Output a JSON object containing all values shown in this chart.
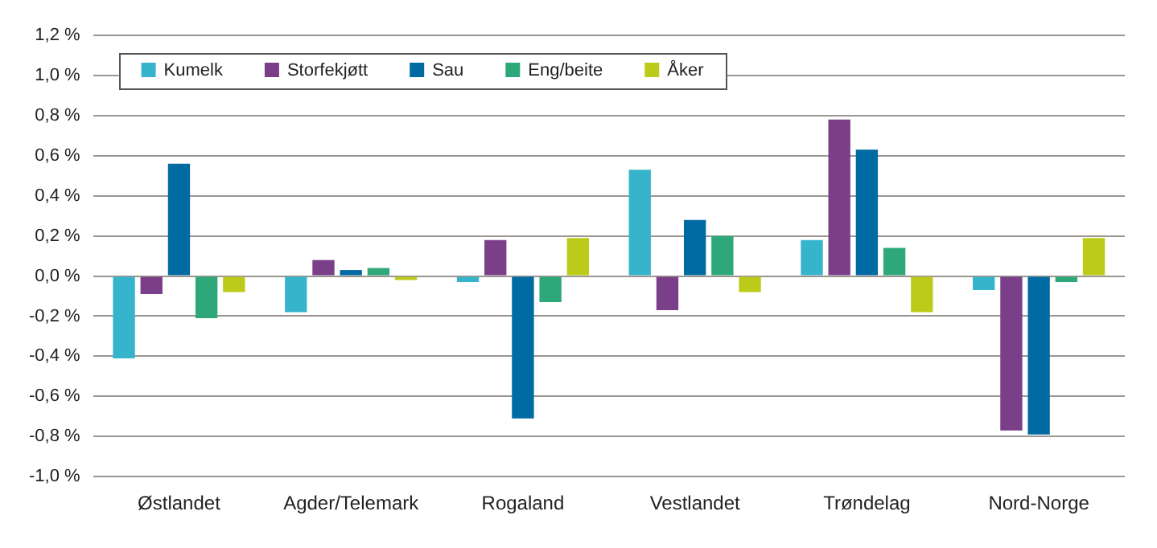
{
  "chart_data": {
    "type": "bar",
    "categories": [
      "Østlandet",
      "Agder/Telemark",
      "Rogaland",
      "Vestlandet",
      "Trøndelag",
      "Nord-Norge"
    ],
    "series": [
      {
        "name": "Kumelk",
        "color": "#36b4cc",
        "values": [
          -0.41,
          -0.18,
          -0.03,
          0.53,
          0.18,
          -0.07
        ]
      },
      {
        "name": "Storfekjøtt",
        "color": "#7b3f8a",
        "values": [
          -0.09,
          0.08,
          0.18,
          -0.17,
          0.78,
          -0.77
        ]
      },
      {
        "name": "Sau",
        "color": "#006aa3",
        "values": [
          0.56,
          0.03,
          -0.71,
          0.28,
          0.63,
          -0.79
        ]
      },
      {
        "name": "Eng/beite",
        "color": "#2ea87a",
        "values": [
          -0.21,
          0.04,
          -0.13,
          0.2,
          0.14,
          -0.03
        ]
      },
      {
        "name": "Åker",
        "color": "#bccb1a",
        "values": [
          -0.08,
          -0.02,
          0.19,
          -0.08,
          -0.18,
          0.19
        ]
      }
    ],
    "ylim": [
      -1.0,
      1.2
    ],
    "yticks": [
      {
        "value": -1.0,
        "label": "-1,0 %"
      },
      {
        "value": -0.8,
        "label": "-0,8 %"
      },
      {
        "value": -0.6,
        "label": "-0,6 %"
      },
      {
        "value": -0.4,
        "label": "-0,4 %"
      },
      {
        "value": -0.2,
        "label": "-0,2 %"
      },
      {
        "value": 0,
        "label": "0,0 %"
      },
      {
        "value": 0.2,
        "label": "0,2 %"
      },
      {
        "value": 0.4,
        "label": "0,4 %"
      },
      {
        "value": 0.6,
        "label": "0,6 %"
      },
      {
        "value": 0.8,
        "label": "0,8 %"
      },
      {
        "value": 1.0,
        "label": "1,0 %"
      },
      {
        "value": 1.2,
        "label": "1,2 %"
      }
    ],
    "grid": "y",
    "legend": "top left"
  }
}
